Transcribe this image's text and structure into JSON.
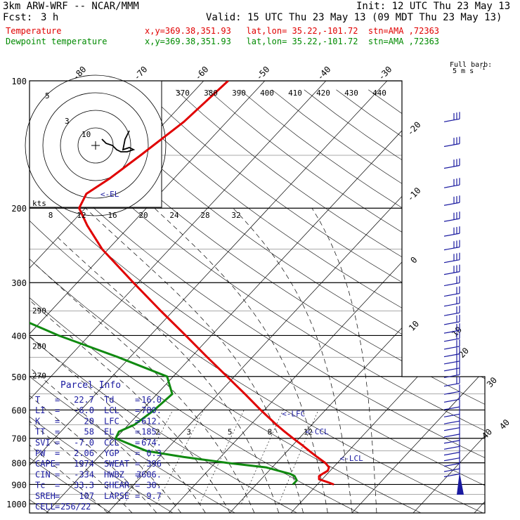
{
  "header": {
    "model": "3km ARW-WRF -- NCAR/MMM",
    "init": "Init: 12 UTC Thu 23 May 13",
    "fcst_label": "Fcst:",
    "fcst_value": "3 h",
    "valid": "Valid: 15 UTC Thu 23 May 13 (09 MDT Thu 23 May 13)",
    "temp_label": "Temperature",
    "temp_loc": "x,y=369.38,351.93   lat,lon= 35.22,-101.72  stn=AMA ,72363",
    "dew_label": "Dewpoint temperature",
    "dew_loc": "x,y=369.38,351.93   lat,lon= 35.22,-101.72  stn=AMA ,72363"
  },
  "colors": {
    "temperature": "#e00000",
    "dewpoint": "#108a10",
    "parcel": "#1a1aa0",
    "grid": "#000000"
  },
  "chart_data": {
    "type": "skew-t log-p",
    "pressure_axis": {
      "labels": [
        "100",
        "200",
        "300",
        "400",
        "500",
        "600",
        "700",
        "800",
        "900",
        "1000"
      ],
      "values": [
        100,
        200,
        300,
        400,
        500,
        600,
        700,
        800,
        900,
        1000
      ],
      "scale": "log"
    },
    "isotherm_labels": [
      "-80",
      "-70",
      "-60",
      "-50",
      "-40",
      "-30",
      "-20",
      "-10",
      "0",
      "10",
      "20",
      "30",
      "40"
    ],
    "isotherm_values": [
      -80,
      -70,
      -60,
      -50,
      -40,
      -30,
      -20,
      -10,
      0,
      10,
      20,
      30,
      40
    ],
    "theta_labels": [
      "370",
      "380",
      "390",
      "400",
      "410",
      "420",
      "430",
      "440"
    ],
    "theta_values": [
      370,
      380,
      390,
      400,
      410,
      420,
      430,
      440
    ],
    "theta_dry_labels": [
      "290",
      "280",
      "270"
    ],
    "theta_dry_values": [
      290,
      280,
      270
    ],
    "mixing_ratio_labels": [
      "2",
      "3",
      "5",
      "8",
      "12"
    ],
    "mixing_ratio_values": [
      2,
      3,
      5,
      8,
      12
    ],
    "series": [
      {
        "name": "Temperature",
        "pressure": [
          900,
          890,
          875,
          860,
          850,
          835,
          820,
          800,
          775,
          750,
          725,
          700,
          675,
          650,
          600,
          550,
          500,
          450,
          400,
          350,
          300,
          250,
          220,
          200,
          185,
          170,
          150,
          125,
          100
        ],
        "temperature": [
          22.7,
          21.5,
          19.5,
          19.0,
          19.2,
          19.6,
          19.3,
          18.0,
          15.8,
          13.6,
          11.4,
          9.0,
          6.6,
          4.2,
          -0.6,
          -5.6,
          -11.2,
          -17.4,
          -24.2,
          -32.0,
          -40.8,
          -51.0,
          -57.0,
          -61.0,
          -62.0,
          -60.5,
          -59.0,
          -57.0,
          -56.0
        ]
      },
      {
        "name": "Dewpoint temperature",
        "pressure": [
          900,
          880,
          860,
          850,
          820,
          800,
          775,
          750,
          725,
          700,
          675,
          650,
          600,
          550,
          500,
          450,
          400,
          350,
          300,
          250,
          220,
          200,
          185,
          170,
          150,
          125,
          100
        ],
        "dewpoint": [
          16.0,
          16.0,
          15.0,
          14.0,
          9.0,
          2.0,
          -6.0,
          -13.0,
          -16.5,
          -20.0,
          -20.5,
          -19.0,
          -18.0,
          -17.5,
          -21.0,
          -32.0,
          -45.0,
          -58.0,
          -70.0,
          -79.0,
          -85.0,
          -89.0,
          -92.0,
          -95.0,
          -101.0,
          -106.0,
          -111.0
        ]
      }
    ],
    "levels": {
      "EL": "185",
      "LFC": "612",
      "LCL": "780",
      "CCL": "674"
    }
  },
  "level_labels": {
    "el": "EL",
    "lfc": "LFC",
    "lcl": "LCL",
    "ccl": "CCL"
  },
  "hodograph": {
    "ring_labels": [
      "5",
      "3",
      "10"
    ],
    "kts_label": "kts",
    "speed_labels": [
      "8",
      "12",
      "16",
      "20",
      "24",
      "28",
      "32"
    ],
    "speed_values": [
      8,
      12,
      16,
      20,
      24,
      28,
      32
    ],
    "points": [
      [
        3,
        -3
      ],
      [
        5,
        -1
      ],
      [
        8,
        0
      ],
      [
        10,
        2
      ],
      [
        12,
        3
      ],
      [
        15,
        3
      ],
      [
        18,
        2
      ],
      [
        16,
        1
      ],
      [
        13,
        2
      ],
      [
        14,
        -3
      ],
      [
        16,
        -7
      ]
    ]
  },
  "wind_barb_legend": {
    "label": "Full barb:",
    "value": "5 m s",
    "exp": "-1"
  },
  "speed_scale": [
    "10",
    "20",
    "30",
    "40"
  ],
  "parcel_info": {
    "title": "Parcel Info",
    "rows": [
      {
        "k1": "T",
        "v1": "22.7",
        "k2": "Td",
        "v2": "16.0"
      },
      {
        "k1": "LI",
        "v1": "-6.0",
        "k2": "LCL",
        "v2": "780."
      },
      {
        "k1": "K",
        "v1": "20",
        "k2": "LFC",
        "v2": "612."
      },
      {
        "k1": "TT",
        "v1": "58",
        "k2": "EL",
        "v2": "185."
      },
      {
        "k1": "SVI",
        "v1": "-7.0",
        "k2": "CCL",
        "v2": "674."
      },
      {
        "k1": "PW",
        "v1": "2.06",
        "k2": "YGP",
        "v2": "0.3"
      },
      {
        "k1": "CAPE",
        "v1": "1974",
        "k2": "SWEAT",
        "v2": "396"
      },
      {
        "k1": "CIN",
        "v1": "-334",
        "k2": "HWBZ",
        "v2": "3606."
      },
      {
        "k1": "Tc",
        "v1": "33.3",
        "k2": "SHEAR",
        "v2": "30."
      },
      {
        "k1": "SREH",
        "v1": "107",
        "k2": "LAPSE",
        "v2": "9.7"
      }
    ],
    "cell_label": "CELL",
    "cell_value": "256/22"
  }
}
